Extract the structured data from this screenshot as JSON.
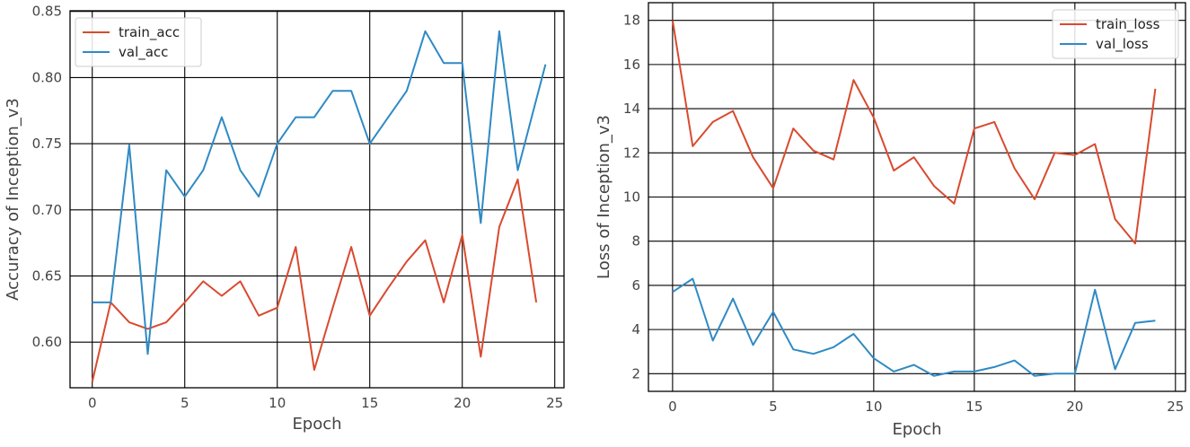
{
  "chart_data": [
    {
      "type": "line",
      "title": "",
      "xlabel": "Epoch",
      "ylabel": "Accuracy of Inception_v3",
      "xlim": [
        -1.2,
        25.5
      ],
      "ylim": [
        0.5655,
        0.8505
      ],
      "xticks": [
        0,
        5,
        10,
        15,
        20,
        25
      ],
      "yticks": [
        0.6,
        0.65,
        0.7,
        0.75,
        0.8,
        0.85
      ],
      "ytick_labels": [
        "0.60",
        "0.65",
        "0.70",
        "0.75",
        "0.80",
        "0.85"
      ],
      "grid": true,
      "legend_position": "top-left",
      "series": [
        {
          "name": "train_acc",
          "color": "#d94a2f",
          "x": [
            0,
            1,
            2,
            3,
            4,
            5,
            6,
            7,
            8,
            9,
            10,
            11,
            12,
            13,
            14,
            15,
            16,
            17,
            18,
            19,
            20,
            21,
            22,
            23,
            24
          ],
          "values": [
            0.57,
            0.63,
            0.615,
            0.61,
            0.615,
            0.63,
            0.646,
            0.635,
            0.646,
            0.62,
            0.626,
            0.672,
            0.579,
            0.626,
            0.672,
            0.62,
            0.641,
            0.661,
            0.677,
            0.63,
            0.681,
            0.589,
            0.687,
            0.723,
            0.63
          ]
        },
        {
          "name": "val_acc",
          "color": "#2f8ac4",
          "x": [
            0,
            1,
            2,
            3,
            4,
            5,
            6,
            7,
            8,
            9,
            10,
            11,
            12,
            13,
            14,
            15,
            16,
            17,
            18,
            19,
            20,
            21,
            22,
            23,
            24.5
          ],
          "values": [
            0.63,
            0.63,
            0.749,
            0.591,
            0.73,
            0.71,
            0.73,
            0.77,
            0.73,
            0.71,
            0.75,
            0.77,
            0.77,
            0.79,
            0.79,
            0.75,
            0.77,
            0.79,
            0.835,
            0.811,
            0.811,
            0.69,
            0.835,
            0.73,
            0.81
          ]
        }
      ]
    },
    {
      "type": "line",
      "title": "",
      "xlabel": "Epoch",
      "ylabel": "Loss of Inception_v3",
      "xlim": [
        -1.2,
        25.5
      ],
      "ylim": [
        1.2,
        18.8
      ],
      "xticks": [
        0,
        5,
        10,
        15,
        20,
        25
      ],
      "yticks": [
        2,
        4,
        6,
        8,
        10,
        12,
        14,
        16,
        18
      ],
      "ytick_labels": [
        "2",
        "4",
        "6",
        "8",
        "10",
        "12",
        "14",
        "16",
        "18"
      ],
      "grid": true,
      "legend_position": "top-right",
      "series": [
        {
          "name": "train_loss",
          "color": "#d94a2f",
          "x": [
            0,
            1,
            2,
            3,
            4,
            5,
            6,
            7,
            8,
            9,
            10,
            11,
            12,
            13,
            14,
            15,
            16,
            17,
            18,
            19,
            20,
            21,
            22,
            23,
            24
          ],
          "values": [
            18.0,
            12.3,
            13.4,
            13.9,
            11.8,
            10.4,
            13.1,
            12.1,
            11.7,
            15.3,
            13.6,
            11.2,
            11.8,
            10.5,
            9.7,
            13.1,
            13.4,
            11.3,
            9.9,
            12.0,
            11.9,
            12.4,
            9.0,
            7.9,
            14.9
          ]
        },
        {
          "name": "val_loss",
          "color": "#2f8ac4",
          "x": [
            0,
            1,
            2,
            3,
            4,
            5,
            6,
            7,
            8,
            9,
            10,
            11,
            12,
            13,
            14,
            15,
            16,
            17,
            18,
            19,
            20,
            21,
            22,
            23,
            24
          ],
          "values": [
            5.7,
            6.3,
            3.5,
            5.4,
            3.3,
            4.8,
            3.1,
            2.9,
            3.2,
            3.8,
            2.7,
            2.1,
            2.4,
            1.9,
            2.1,
            2.1,
            2.3,
            2.6,
            1.9,
            2.0,
            2.0,
            5.8,
            2.2,
            4.3,
            4.4
          ]
        }
      ]
    }
  ]
}
